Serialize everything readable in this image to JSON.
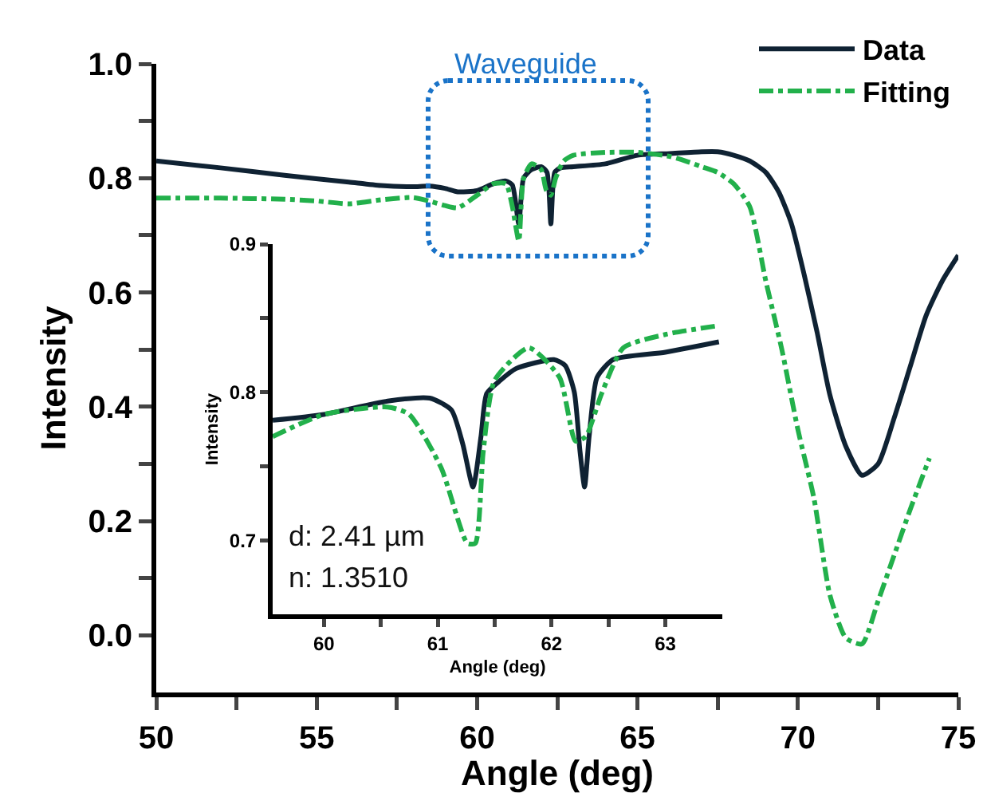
{
  "chart_data": [
    {
      "type": "line",
      "xlabel": "Angle (deg)",
      "ylabel": "Intensity",
      "xlim": [
        50,
        75
      ],
      "ylim": [
        -0.1,
        1.0
      ],
      "xticks": [
        50,
        {
          "value": 52.5,
          "label": null
        },
        55,
        {
          "value": 57.5,
          "label": null
        },
        60,
        {
          "value": 62.5,
          "label": null
        },
        65,
        {
          "value": 67.5,
          "label": null
        },
        70,
        {
          "value": 72.5,
          "label": null
        },
        75
      ],
      "yticks": [
        {
          "value": 0.0,
          "label": "0.0"
        },
        {
          "value": 0.1,
          "label": null
        },
        0.2,
        {
          "value": 0.3,
          "label": null
        },
        0.4,
        {
          "value": 0.5,
          "label": null
        },
        0.6,
        {
          "value": 0.7,
          "label": null
        },
        0.8,
        {
          "value": 0.9,
          "label": null
        },
        {
          "value": 1.0,
          "label": "1.0"
        }
      ],
      "legend": "top right",
      "grid": false,
      "marker": "none",
      "annotations": [
        "Waveguide"
      ],
      "series": [
        {
          "name": "Data",
          "color": "#0f2233",
          "line_style": "solid",
          "x": [
            50,
            52,
            54,
            56,
            57,
            58,
            58.5,
            59,
            59.4,
            60,
            60.5,
            60.9,
            61.1,
            61.3,
            61.45,
            61.7,
            62,
            62.18,
            62.3,
            62.42,
            62.6,
            63,
            64,
            65,
            66,
            67,
            67.5,
            68,
            68.5,
            69,
            69.4,
            69.8,
            70.2,
            70.6,
            71,
            71.5,
            72,
            72.5,
            73,
            73.5,
            74,
            74.5,
            75
          ],
          "values": [
            0.83,
            0.818,
            0.805,
            0.793,
            0.787,
            0.785,
            0.786,
            0.782,
            0.776,
            0.778,
            0.79,
            0.795,
            0.788,
            0.72,
            0.8,
            0.815,
            0.82,
            0.81,
            0.72,
            0.81,
            0.818,
            0.82,
            0.825,
            0.84,
            0.843,
            0.846,
            0.846,
            0.84,
            0.83,
            0.81,
            0.776,
            0.72,
            0.63,
            0.53,
            0.42,
            0.33,
            0.28,
            0.3,
            0.38,
            0.47,
            0.56,
            0.62,
            0.665
          ]
        },
        {
          "name": "Fitting",
          "color": "#22b04b",
          "line_style": "dashed",
          "x": [
            50,
            52,
            54,
            55,
            56,
            57,
            58,
            58.5,
            59,
            59.4,
            60,
            60.5,
            60.9,
            61.1,
            61.3,
            61.45,
            61.7,
            62,
            62.15,
            62.3,
            62.45,
            62.7,
            63,
            64,
            65,
            66,
            66.5,
            67,
            67.5,
            68,
            68.5,
            69,
            69.5,
            70,
            70.5,
            71,
            71.5,
            72,
            72.5,
            73,
            73.5,
            74.1
          ],
          "values": [
            0.765,
            0.765,
            0.763,
            0.76,
            0.755,
            0.762,
            0.766,
            0.76,
            0.752,
            0.748,
            0.77,
            0.79,
            0.79,
            0.75,
            0.69,
            0.8,
            0.825,
            0.815,
            0.78,
            0.77,
            0.8,
            0.83,
            0.84,
            0.845,
            0.845,
            0.838,
            0.83,
            0.82,
            0.81,
            0.79,
            0.75,
            0.62,
            0.5,
            0.36,
            0.24,
            0.07,
            -0.005,
            -0.015,
            0.06,
            0.14,
            0.22,
            0.31
          ]
        }
      ]
    },
    {
      "type": "line",
      "xlabel": "Angle (deg)",
      "ylabel": "Intensity",
      "xlim": [
        59.55,
        63.5
      ],
      "ylim": [
        0.65,
        0.9
      ],
      "xticks": [
        60,
        {
          "value": 60.5,
          "label": null
        },
        61,
        {
          "value": 61.5,
          "label": null
        },
        62,
        {
          "value": 62.5,
          "label": null
        },
        63
      ],
      "yticks": [
        0.7,
        {
          "value": 0.75,
          "label": null
        },
        0.8,
        {
          "value": 0.85,
          "label": null
        },
        0.9
      ],
      "grid": false,
      "marker": "none",
      "annotations": [
        "d: 2.41 µm",
        "n: 1.3510"
      ],
      "series": [
        {
          "color": "#0f2233",
          "line_style": "solid",
          "x": [
            59.55,
            60.0,
            60.56,
            60.93,
            61.12,
            61.22,
            61.31,
            61.38,
            61.43,
            61.55,
            61.69,
            62.02,
            62.12,
            62.2,
            62.25,
            62.29,
            62.33,
            62.4,
            62.54,
            63.0,
            63.47
          ],
          "values": [
            0.781,
            0.785,
            0.794,
            0.796,
            0.788,
            0.765,
            0.736,
            0.77,
            0.799,
            0.808,
            0.816,
            0.822,
            0.818,
            0.8,
            0.76,
            0.736,
            0.77,
            0.81,
            0.822,
            0.827,
            0.834
          ]
        },
        {
          "color": "#22b04b",
          "line_style": "dashed",
          "x": [
            59.55,
            60.0,
            60.56,
            60.75,
            61.03,
            61.26,
            61.33,
            61.4,
            61.5,
            61.8,
            62.07,
            62.21,
            62.3,
            62.44,
            62.63,
            63.0,
            63.47
          ],
          "values": [
            0.77,
            0.785,
            0.79,
            0.785,
            0.749,
            0.698,
            0.698,
            0.76,
            0.808,
            0.83,
            0.81,
            0.767,
            0.77,
            0.799,
            0.83,
            0.839,
            0.845
          ]
        }
      ]
    }
  ]
}
